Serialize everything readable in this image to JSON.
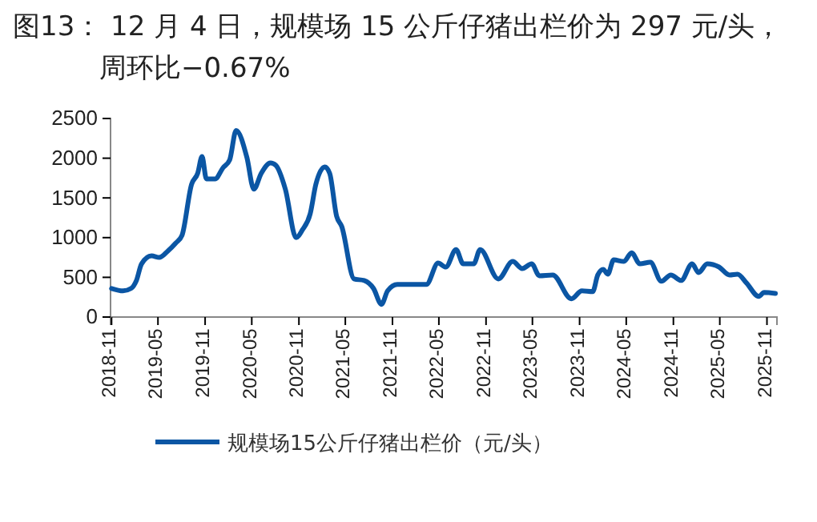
{
  "chart_data": {
    "type": "line",
    "title": "图13：   12 月 4 日，规模场 15 公斤仔猪出栏价为 297 元/头，周环比−0.67%",
    "x": [
      "2018-11-01",
      "2018-12-16",
      "2019-01-16",
      "2019-02-06",
      "2019-02-26",
      "2019-04-06",
      "2019-05-06",
      "2019-06-08",
      "2019-07-09",
      "2019-08-03",
      "2019-09-09",
      "2019-10-03",
      "2019-10-20",
      "2019-11-06",
      "2019-12-10",
      "2020-01-10",
      "2020-02-05",
      "2020-03-01",
      "2020-04-12",
      "2020-05-09",
      "2020-06-07",
      "2020-07-13",
      "2020-08-03",
      "2020-09-09",
      "2020-10-21",
      "2020-11-15",
      "2020-12-15",
      "2021-01-06",
      "2021-02-10",
      "2021-03-01",
      "2021-03-28",
      "2021-04-17",
      "2021-06-04",
      "2021-07-14",
      "2021-08-19",
      "2021-09-19",
      "2021-10-13",
      "2021-11-20",
      "2022-03-13",
      "2022-04-28",
      "2022-05-28",
      "2022-07-07",
      "2022-08-04",
      "2022-09-14",
      "2022-10-09",
      "2022-12-19",
      "2023-02-13",
      "2023-03-22",
      "2023-04-28",
      "2023-05-28",
      "2023-07-19",
      "2023-09-30",
      "2023-11-10",
      "2023-12-22",
      "2024-01-11",
      "2024-02-01",
      "2024-02-19",
      "2024-03-13",
      "2024-04-22",
      "2024-05-22",
      "2024-06-23",
      "2024-08-03",
      "2024-09-15",
      "2024-10-22",
      "2024-12-01",
      "2025-01-13",
      "2025-02-07",
      "2025-03-13",
      "2025-04-28",
      "2025-06-08",
      "2025-07-09",
      "2025-08-13",
      "2025-09-30",
      "2025-10-21",
      "2025-12-04"
    ],
    "series": [
      {
        "name": "规模场15公斤仔猪出栏价（元/头）",
        "color": "#0b56a4",
        "values": [
          360,
          330,
          360,
          460,
          670,
          770,
          750,
          830,
          930,
          1030,
          1670,
          1810,
          2020,
          1740,
          1740,
          1880,
          1980,
          2350,
          2010,
          1610,
          1810,
          1940,
          1910,
          1610,
          1000,
          1100,
          1300,
          1670,
          1890,
          1810,
          1270,
          1140,
          480,
          460,
          360,
          160,
          330,
          410,
          410,
          680,
          630,
          850,
          670,
          670,
          850,
          480,
          700,
          610,
          670,
          520,
          530,
          230,
          330,
          320,
          530,
          600,
          540,
          720,
          700,
          810,
          670,
          690,
          450,
          530,
          460,
          670,
          560,
          670,
          630,
          530,
          540,
          430,
          260,
          310,
          297
        ]
      }
    ],
    "xlim": [
      "2018-10-28",
      "2025-12-10"
    ],
    "xticks": [
      "2018-11",
      "2019-05",
      "2019-11",
      "2020-05",
      "2020-11",
      "2021-05",
      "2021-11",
      "2022-05",
      "2022-11",
      "2023-05",
      "2023-11",
      "2024-05",
      "2024-11",
      "2025-05",
      "2025-11"
    ],
    "ylim": [
      0,
      2500
    ],
    "yticks": [
      0,
      500,
      1000,
      1500,
      2000,
      2500
    ],
    "legend": "bottom"
  }
}
